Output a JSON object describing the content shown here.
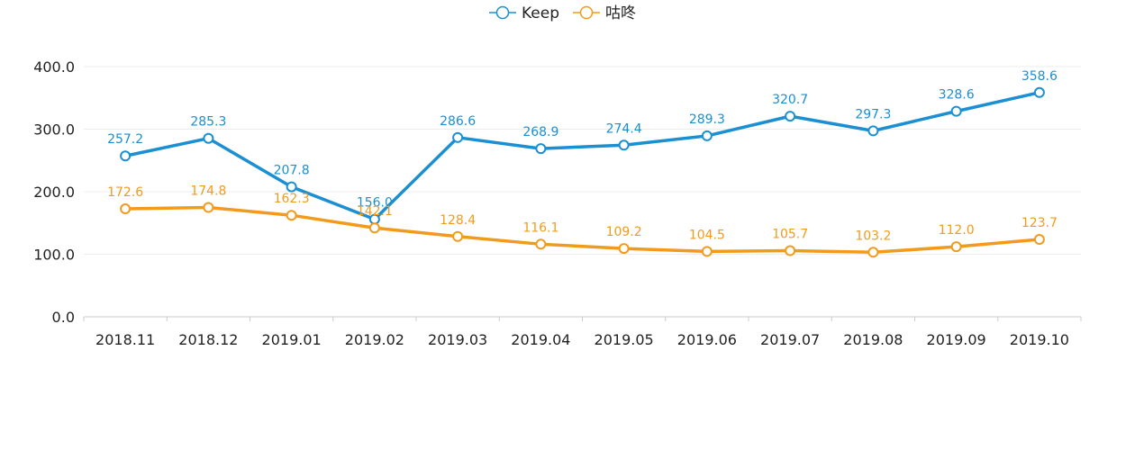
{
  "colors": {
    "keep": "#1a8fd2",
    "gudong": "#f29b1b",
    "grid": "#ececec",
    "axis": "#cccccc"
  },
  "chart_data": {
    "type": "line",
    "categories": [
      "2018.11",
      "2018.12",
      "2019.01",
      "2019.02",
      "2019.03",
      "2019.04",
      "2019.05",
      "2019.06",
      "2019.07",
      "2019.08",
      "2019.09",
      "2019.10"
    ],
    "series": [
      {
        "name": "Keep",
        "color_key": "keep",
        "values": [
          257.2,
          285.3,
          207.8,
          156.0,
          286.6,
          268.9,
          274.4,
          289.3,
          320.7,
          297.3,
          328.6,
          358.6
        ],
        "labels": [
          "257.2",
          "285.3",
          "207.8",
          "156.0",
          "286.6",
          "268.9",
          "274.4",
          "289.3",
          "320.7",
          "297.3",
          "328.6",
          "358.6"
        ]
      },
      {
        "name": "咕咚",
        "color_key": "gudong",
        "values": [
          172.6,
          174.8,
          162.3,
          142.1,
          128.4,
          116.1,
          109.2,
          104.5,
          105.7,
          103.2,
          112.0,
          123.7
        ],
        "labels": [
          "172.6",
          "174.8",
          "162.3",
          "142.1",
          "128.4",
          "116.1",
          "109.2",
          "104.5",
          "105.7",
          "103.2",
          "112.0",
          "123.7"
        ]
      }
    ],
    "y_ticks": [
      "0.0",
      "100.0",
      "200.0",
      "300.0",
      "400.0"
    ],
    "ylim": [
      0,
      400
    ],
    "legend": "top-center",
    "grid": true,
    "title": "",
    "xlabel": "",
    "ylabel": ""
  }
}
